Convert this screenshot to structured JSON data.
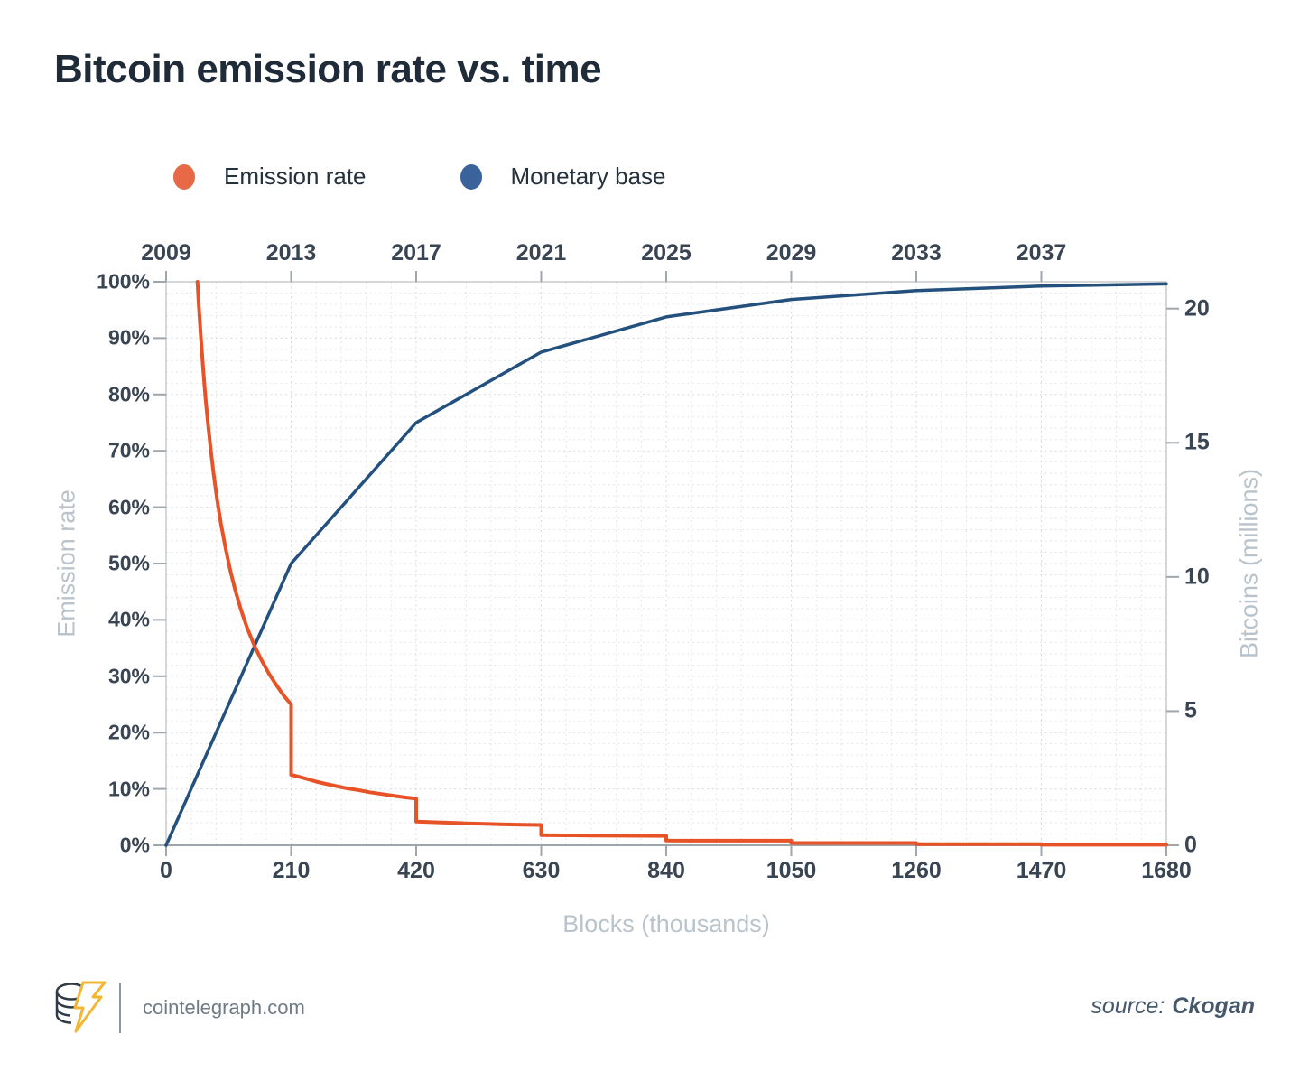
{
  "title": "Bitcoin emission rate vs. time",
  "legend": [
    {
      "label": "Emission rate",
      "dot_color": "#E86946"
    },
    {
      "label": "Monetary base",
      "dot_color": "#3A639B"
    }
  ],
  "chart_data": {
    "type": "line",
    "title": "Bitcoin emission rate vs. time",
    "grid": "fine dotted grid on",
    "legend_position": "top",
    "x_axis_bottom": {
      "title": "Blocks (thousands)",
      "tick_labels": [
        "0",
        "210",
        "420",
        "630",
        "840",
        "1050",
        "1260",
        "1470",
        "1680"
      ],
      "tick_values": [
        0,
        210,
        420,
        630,
        840,
        1050,
        1260,
        1470,
        1680
      ],
      "range": [
        0,
        1680
      ]
    },
    "x_axis_top": {
      "tick_labels": [
        "2009",
        "2013",
        "2017",
        "2021",
        "2025",
        "2029",
        "2033",
        "2037"
      ],
      "tick_values_blocks": [
        0,
        210,
        420,
        630,
        840,
        1050,
        1260,
        1470
      ]
    },
    "y_axis_left": {
      "title": "Emission rate",
      "tick_labels": [
        "0%",
        "10%",
        "20%",
        "30%",
        "40%",
        "50%",
        "60%",
        "70%",
        "80%",
        "90%",
        "100%"
      ],
      "tick_values": [
        0,
        10,
        20,
        30,
        40,
        50,
        60,
        70,
        80,
        90,
        100
      ],
      "range": [
        0,
        100
      ]
    },
    "y_axis_right": {
      "title": "Bitcoins (millions)",
      "tick_labels": [
        "0",
        "5",
        "10",
        "15",
        "20"
      ],
      "tick_values": [
        0,
        5,
        10,
        15,
        20
      ],
      "range": [
        0,
        21
      ]
    },
    "series": [
      {
        "name": "Emission rate",
        "color": "#E75227",
        "axis": "left",
        "units": "percent",
        "points": [
          [
            52.6,
            100
          ],
          [
            53,
            99.2
          ],
          [
            55,
            95.6
          ],
          [
            58,
            90.6
          ],
          [
            62,
            84.8
          ],
          [
            66,
            79.6
          ],
          [
            70,
            75.1
          ],
          [
            75,
            70.1
          ],
          [
            80,
            65.7
          ],
          [
            86,
            61.1
          ],
          [
            92,
            57.1
          ],
          [
            100,
            52.6
          ],
          [
            108,
            48.7
          ],
          [
            116,
            45.3
          ],
          [
            126,
            41.7
          ],
          [
            136,
            38.6
          ],
          [
            148,
            35.5
          ],
          [
            160,
            32.9
          ],
          [
            172,
            30.6
          ],
          [
            186,
            28.3
          ],
          [
            198,
            26.5
          ],
          [
            210,
            25.0
          ],
          [
            210,
            12.5
          ],
          [
            222,
            12.2
          ],
          [
            236,
            11.8
          ],
          [
            252,
            11.3
          ],
          [
            268,
            10.9
          ],
          [
            286,
            10.5
          ],
          [
            304,
            10.1
          ],
          [
            322,
            9.8
          ],
          [
            342,
            9.4
          ],
          [
            362,
            9.1
          ],
          [
            382,
            8.8
          ],
          [
            402,
            8.5
          ],
          [
            420,
            8.3
          ],
          [
            420,
            4.2
          ],
          [
            446,
            4.1
          ],
          [
            474,
            4.0
          ],
          [
            504,
            3.9
          ],
          [
            536,
            3.8
          ],
          [
            568,
            3.7
          ],
          [
            600,
            3.65
          ],
          [
            630,
            3.6
          ],
          [
            630,
            1.8
          ],
          [
            672,
            1.76
          ],
          [
            716,
            1.73
          ],
          [
            762,
            1.7
          ],
          [
            840,
            1.67
          ],
          [
            840,
            0.83
          ],
          [
            900,
            0.82
          ],
          [
            970,
            0.81
          ],
          [
            1050,
            0.81
          ],
          [
            1050,
            0.4
          ],
          [
            1150,
            0.4
          ],
          [
            1260,
            0.4
          ],
          [
            1260,
            0.2
          ],
          [
            1360,
            0.2
          ],
          [
            1470,
            0.2
          ],
          [
            1470,
            0.1
          ],
          [
            1575,
            0.1
          ],
          [
            1680,
            0.1
          ]
        ]
      },
      {
        "name": "Monetary base",
        "color": "#24507E",
        "axis": "right",
        "units": "millions of BTC",
        "points": [
          [
            0,
            0
          ],
          [
            210,
            10.5
          ],
          [
            420,
            15.75
          ],
          [
            630,
            18.38
          ],
          [
            840,
            19.69
          ],
          [
            1050,
            20.34
          ],
          [
            1260,
            20.67
          ],
          [
            1470,
            20.84
          ],
          [
            1680,
            20.92
          ]
        ]
      }
    ]
  },
  "footer": {
    "site": "cointelegraph.com",
    "source_prefix": "source:",
    "source_name": "Ckogan"
  },
  "colors": {
    "title_text": "#1F2B38",
    "tick_text": "#3A4553",
    "axis_title_text": "#B9C3CC",
    "plot_border": "#C7CBCF",
    "axis_line": "#9FA6AC",
    "grid_minor": "#E4E5E6",
    "grid_major": "#D7D9DB",
    "logo_yellow": "#F2B632",
    "logo_dark": "#2F3B46"
  }
}
